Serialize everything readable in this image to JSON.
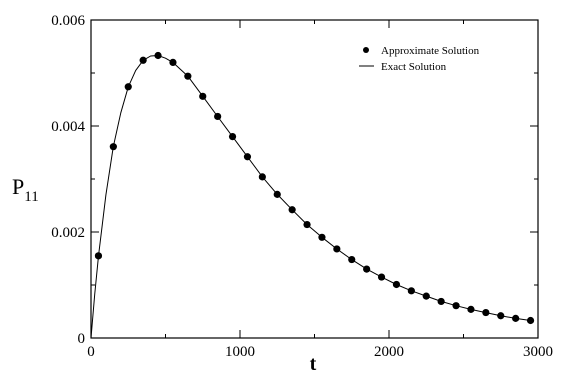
{
  "chart_data": {
    "type": "line",
    "xlabel": "t",
    "ylabel": "P",
    "ylabel_sub": "11",
    "xlim": [
      0,
      3000
    ],
    "ylim": [
      0,
      0.006
    ],
    "x_ticks": [
      0,
      1000,
      2000,
      3000
    ],
    "x_tick_labels": [
      "0",
      "1000",
      "2000",
      "3000"
    ],
    "y_ticks": [
      0,
      0.002,
      0.004,
      0.006
    ],
    "y_tick_labels": [
      "0",
      "0.002",
      "0.004",
      "0.006"
    ],
    "legend_position": "top-right",
    "series": [
      {
        "name": "Approximate Solution",
        "style": "markers",
        "x": [
          50,
          150,
          250,
          350,
          450,
          550,
          650,
          750,
          850,
          950,
          1050,
          1150,
          1250,
          1350,
          1450,
          1550,
          1650,
          1750,
          1850,
          1950,
          2050,
          2150,
          2250,
          2350,
          2450,
          2550,
          2650,
          2750,
          2850,
          2950
        ],
        "y": [
          0.00155,
          0.00361,
          0.00474,
          0.00524,
          0.00533,
          0.0052,
          0.00494,
          0.00456,
          0.00418,
          0.0038,
          0.00342,
          0.00304,
          0.00271,
          0.00242,
          0.00214,
          0.0019,
          0.00168,
          0.00148,
          0.0013,
          0.00115,
          0.00101,
          0.00089,
          0.00079,
          0.00069,
          0.00061,
          0.00054,
          0.00048,
          0.00042,
          0.00037,
          0.00033
        ]
      },
      {
        "name": "Exact Solution",
        "style": "line",
        "x": [
          0,
          25,
          50,
          100,
          150,
          200,
          250,
          300,
          350,
          400,
          450,
          500,
          550,
          650,
          750,
          850,
          950,
          1050,
          1150,
          1250,
          1350,
          1450,
          1550,
          1650,
          1750,
          1850,
          1950,
          2050,
          2150,
          2250,
          2350,
          2450,
          2550,
          2650,
          2750,
          2850,
          2950
        ],
        "y": [
          0,
          0.00082,
          0.00155,
          0.0027,
          0.00361,
          0.00425,
          0.00474,
          0.00505,
          0.00524,
          0.00532,
          0.00533,
          0.00528,
          0.0052,
          0.00494,
          0.00456,
          0.00418,
          0.0038,
          0.00342,
          0.00304,
          0.00271,
          0.00242,
          0.00214,
          0.0019,
          0.00168,
          0.00148,
          0.0013,
          0.00115,
          0.00101,
          0.00089,
          0.00079,
          0.00069,
          0.00061,
          0.00054,
          0.00048,
          0.00042,
          0.00037,
          0.00033
        ]
      }
    ]
  }
}
